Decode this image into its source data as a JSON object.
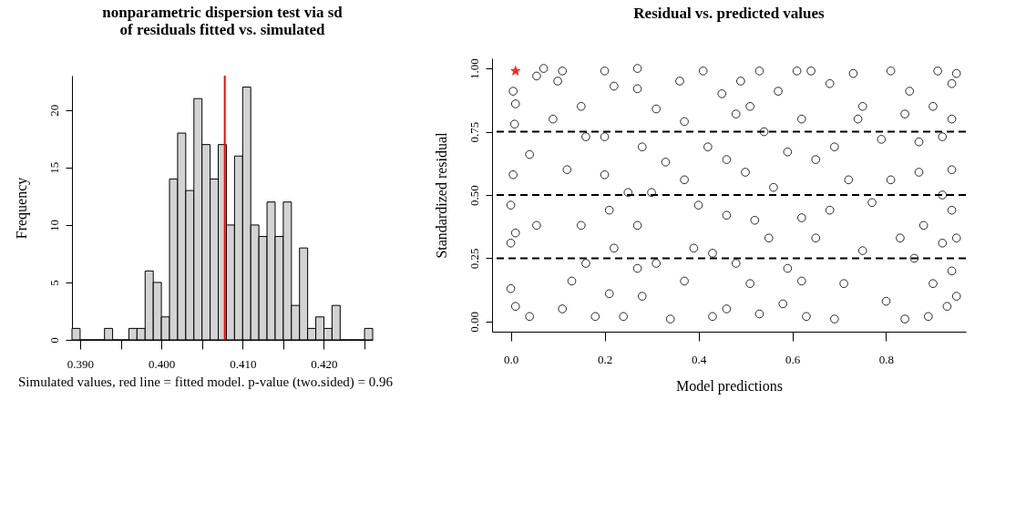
{
  "chart_data": [
    {
      "type": "histogram",
      "title": "nonparametric dispersion test via sd of residuals fitted vs. simulated",
      "ylabel": "Frequency",
      "color": "#d3d3d3",
      "bins": [
        0.389,
        0.39,
        0.391,
        0.392,
        0.393,
        0.394,
        0.395,
        0.396,
        0.397,
        0.398,
        0.399,
        0.4,
        0.401,
        0.402,
        0.403,
        0.404,
        0.405,
        0.406,
        0.407,
        0.408,
        0.409,
        0.41,
        0.411,
        0.412,
        0.413,
        0.414,
        0.415,
        0.416,
        0.417,
        0.418,
        0.419,
        0.42,
        0.421,
        0.422,
        0.423,
        0.424,
        0.425,
        0.426
      ],
      "values": [
        1,
        0,
        0,
        0,
        1,
        0,
        0,
        1,
        1,
        6,
        5,
        2,
        14,
        18,
        13,
        21,
        17,
        14,
        17,
        10,
        16,
        22,
        10,
        9,
        12,
        9,
        12,
        3,
        8,
        1,
        2,
        1,
        3,
        0,
        0,
        0,
        1
      ],
      "xlim": [
        0.389,
        0.426
      ],
      "xticks": [
        {
          "value": 0.39,
          "label": "0.390"
        },
        {
          "value": 0.395,
          "label": null
        },
        {
          "value": 0.4,
          "label": "0.400"
        },
        {
          "value": 0.405,
          "label": null
        },
        {
          "value": 0.41,
          "label": "0.410"
        },
        {
          "value": 0.415,
          "label": null
        },
        {
          "value": 0.42,
          "label": "0.420"
        },
        {
          "value": 0.425,
          "label": null
        }
      ],
      "ylim": [
        0,
        23
      ],
      "yticks": [
        0,
        5,
        10,
        15,
        20
      ],
      "ref_lines": [
        {
          "axis": "x",
          "value": 0.4078,
          "color": "#ff0000",
          "line_style": "solid"
        }
      ],
      "annotations": [
        "Simulated values, red line = fitted model. p-value (two.sided) = 0.96"
      ]
    },
    {
      "type": "scatter",
      "title": "Residual vs. predicted values",
      "xlabel": "Model predictions",
      "ylabel": "Standardized residual",
      "xlim": [
        -0.04,
        0.97
      ],
      "xticks": [
        {
          "value": 0,
          "label": "0.0"
        },
        0.2,
        0.4,
        0.6,
        0.8
      ],
      "ylim": [
        -0.04,
        1.04
      ],
      "yticks": [
        {
          "value": 0,
          "label": "0.00"
        },
        0.25,
        {
          "value": 0.5,
          "label": "0.50"
        },
        0.75,
        {
          "value": 1,
          "label": "1.00"
        }
      ],
      "ref_lines": [
        {
          "axis": "y",
          "value": 0.25,
          "color": "#000000",
          "line_style": "dashed"
        },
        {
          "axis": "y",
          "value": 0.5,
          "color": "#000000",
          "line_style": "dashed"
        },
        {
          "axis": "y",
          "value": 0.75,
          "color": "#000000",
          "line_style": "dashed"
        }
      ],
      "series": [
        {
          "color": "#000000",
          "marker": "circle",
          "x": [
            0.005,
            0.01,
            0.008,
            0.005,
            0,
            0.01,
            0,
            0,
            0.01,
            0.04,
            0.055,
            0.07,
            0.055,
            0.04,
            0.11,
            0.1,
            0.09,
            0.12,
            0.13,
            0.11,
            0.15,
            0.16,
            0.15,
            0.16,
            0.2,
            0.22,
            0.2,
            0.2,
            0.21,
            0.22,
            0.21,
            0.18,
            0.27,
            0.27,
            0.28,
            0.25,
            0.27,
            0.27,
            0.28,
            0.24,
            0.31,
            0.33,
            0.3,
            0.31,
            0.34,
            0.36,
            0.37,
            0.37,
            0.39,
            0.37,
            0.41,
            0.42,
            0.4,
            0.43,
            0.43,
            0.45,
            0.48,
            0.46,
            0.46,
            0.48,
            0.46,
            0.49,
            0.51,
            0.5,
            0.52,
            0.51,
            0.53,
            0.54,
            0.56,
            0.55,
            0.53,
            0.57,
            0.59,
            0.59,
            0.58,
            0.61,
            0.62,
            0.62,
            0.62,
            0.64,
            0.65,
            0.65,
            0.63,
            0.68,
            0.69,
            0.68,
            0.69,
            0.71,
            0.73,
            0.74,
            0.72,
            0.75,
            0.75,
            0.77,
            0.79,
            0.8,
            0.81,
            0.81,
            0.83,
            0.84,
            0.84,
            0.85,
            0.86,
            0.87,
            0.87,
            0.88,
            0.89,
            0.9,
            0.9,
            0.91,
            0.92,
            0.92,
            0.92,
            0.93,
            0.94,
            0.94,
            0.94,
            0.94,
            0.94,
            0.95,
            0.95,
            0.95
          ],
          "values": [
            0.91,
            0.86,
            0.78,
            0.58,
            0.46,
            0.35,
            0.31,
            0.13,
            0.06,
            0.02,
            0.97,
            1.0,
            0.38,
            0.66,
            0.99,
            0.95,
            0.8,
            0.6,
            0.16,
            0.05,
            0.85,
            0.73,
            0.38,
            0.23,
            0.99,
            0.93,
            0.73,
            0.58,
            0.44,
            0.29,
            0.11,
            0.02,
            1.0,
            0.92,
            0.69,
            0.51,
            0.38,
            0.21,
            0.1,
            0.02,
            0.84,
            0.63,
            0.51,
            0.23,
            0.01,
            0.95,
            0.79,
            0.56,
            0.29,
            0.16,
            0.99,
            0.69,
            0.46,
            0.27,
            0.02,
            0.9,
            0.82,
            0.64,
            0.42,
            0.23,
            0.05,
            0.95,
            0.85,
            0.59,
            0.4,
            0.15,
            0.99,
            0.75,
            0.53,
            0.33,
            0.03,
            0.91,
            0.67,
            0.21,
            0.07,
            0.99,
            0.8,
            0.41,
            0.16,
            0.99,
            0.64,
            0.33,
            0.02,
            0.94,
            0.69,
            0.44,
            0.01,
            0.15,
            0.98,
            0.8,
            0.56,
            0.28,
            0.85,
            0.47,
            0.72,
            0.08,
            0.99,
            0.56,
            0.33,
            0.82,
            0.01,
            0.91,
            0.25,
            0.59,
            0.71,
            0.38,
            0.02,
            0.85,
            0.15,
            0.99,
            0.5,
            0.73,
            0.31,
            0.06,
            0.94,
            0.6,
            0.2,
            0.44,
            0.8,
            0.1,
            0.98,
            0.33
          ]
        },
        {
          "color": "#ff0000",
          "marker": "star",
          "x": [
            0.01
          ],
          "values": [
            0.99
          ]
        }
      ]
    }
  ]
}
